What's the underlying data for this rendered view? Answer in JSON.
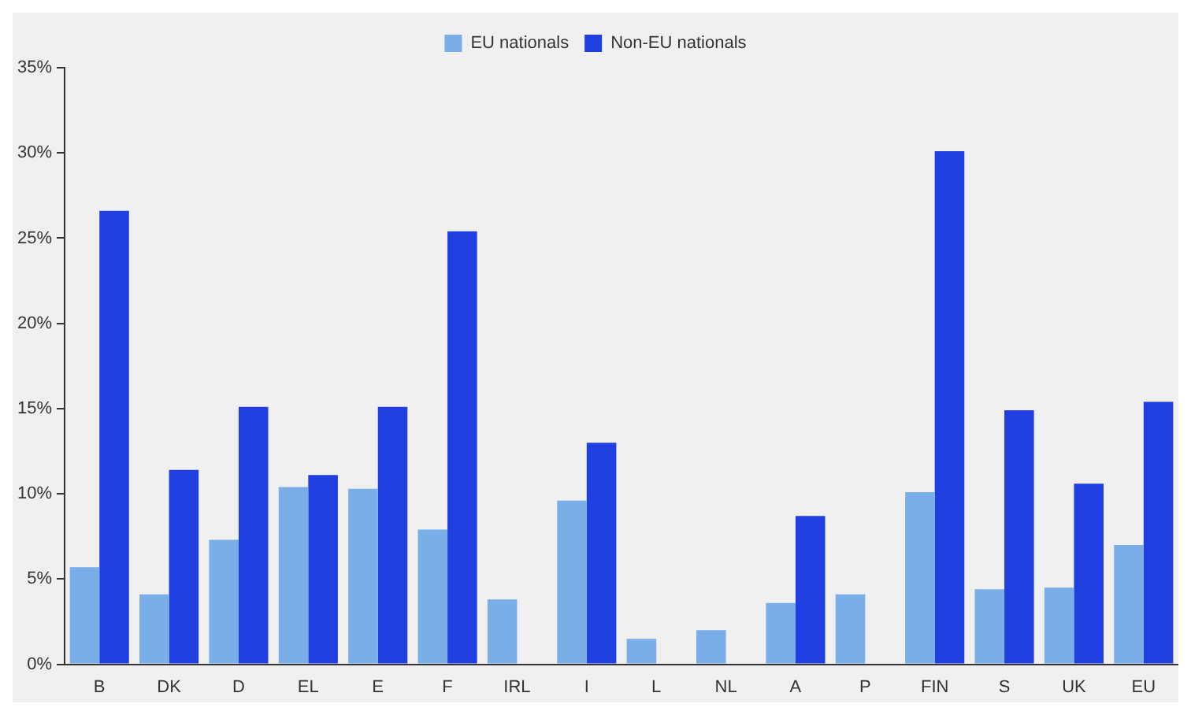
{
  "chart_data": {
    "type": "bar",
    "categories": [
      "B",
      "DK",
      "D",
      "EL",
      "E",
      "F",
      "IRL",
      "I",
      "L",
      "NL",
      "A",
      "P",
      "FIN",
      "S",
      "UK",
      "EU"
    ],
    "series": [
      {
        "name": "EU nationals",
        "color": "#7aaee8",
        "values": [
          5.7,
          4.1,
          7.3,
          10.4,
          10.3,
          7.9,
          3.8,
          9.6,
          1.5,
          2.0,
          3.6,
          4.1,
          10.1,
          4.4,
          4.5,
          7.0
        ]
      },
      {
        "name": "Non-EU nationals",
        "color": "#1f3fe0",
        "values": [
          26.6,
          11.4,
          15.1,
          11.1,
          15.1,
          25.4,
          null,
          13.0,
          null,
          null,
          8.7,
          null,
          30.1,
          14.9,
          10.6,
          15.4
        ]
      }
    ],
    "ylim": [
      0,
      35
    ],
    "yticks": [
      {
        "value": 0,
        "label": "0%"
      },
      {
        "value": 5,
        "label": "5%"
      },
      {
        "value": 10,
        "label": "10%"
      },
      {
        "value": 15,
        "label": "15%"
      },
      {
        "value": 20,
        "label": "20%"
      },
      {
        "value": 25,
        "label": "25%"
      },
      {
        "value": 30,
        "label": "30%"
      },
      {
        "value": 35,
        "label": "35%"
      }
    ],
    "grid": false,
    "legend": "top"
  }
}
